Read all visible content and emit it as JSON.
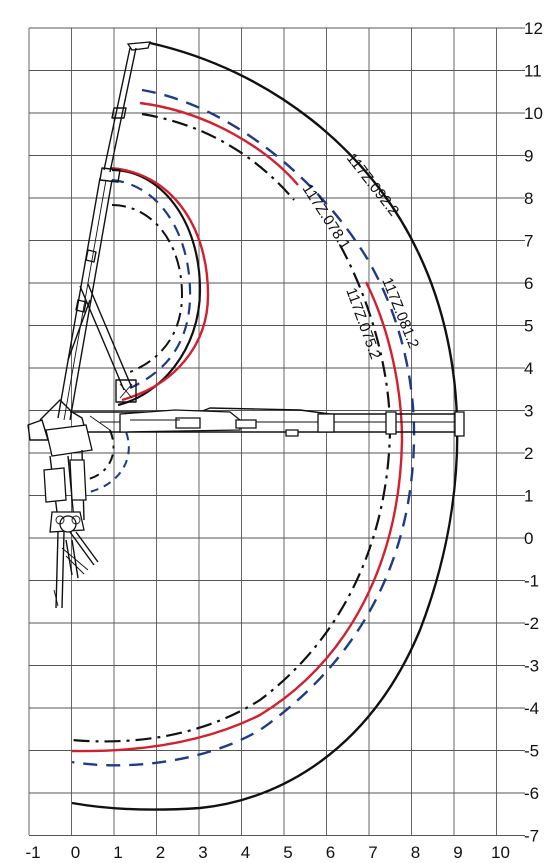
{
  "x_ticks": [
    "-1",
    "0",
    "1",
    "2",
    "3",
    "4",
    "5",
    "6",
    "7",
    "8",
    "9",
    "10"
  ],
  "y_ticks": [
    "12",
    "11",
    "10",
    "9",
    "8",
    "7",
    "6",
    "5",
    "4",
    "3",
    "2",
    "1",
    "0",
    "-1",
    "-2",
    "-3",
    "-4",
    "-5",
    "-6",
    "-7"
  ],
  "curves": [
    {
      "label": "117Z.092.2",
      "style": "solid",
      "color": "#111111"
    },
    {
      "label": "117Z.081.2",
      "style": "dashed",
      "color": "#1f3a8a"
    },
    {
      "label": "117Z.078.1",
      "style": "solid",
      "color": "#d2202f"
    },
    {
      "label": "117Z.075.2",
      "style": "dashdot",
      "color": "#111111"
    }
  ],
  "colors": {
    "grid": "#555555",
    "outline": "#111111",
    "blue": "#1f3a8a",
    "red": "#d2202f"
  }
}
